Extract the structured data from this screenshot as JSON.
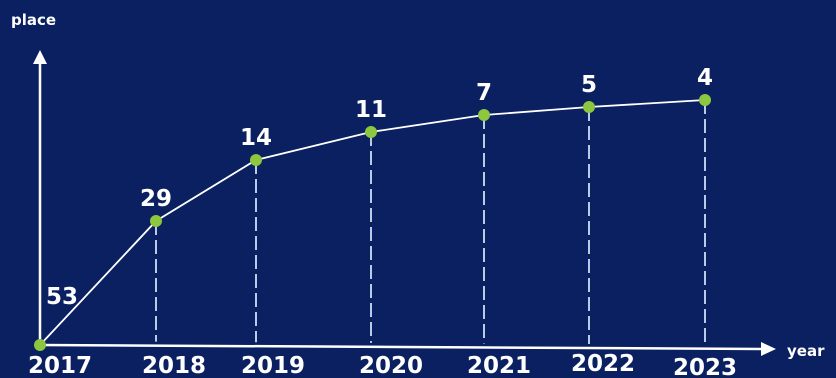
{
  "chart_data": {
    "type": "line",
    "xlabel": "year",
    "ylabel": "place",
    "categories": [
      "2017",
      "2018",
      "2019",
      "2020",
      "2021",
      "2022",
      "2023"
    ],
    "series": [
      {
        "values": [
          53,
          29,
          14,
          11,
          7,
          5,
          4
        ]
      }
    ],
    "grid": false,
    "y_axis_ticks_shown": false,
    "drop_lines": true,
    "colors": {
      "background": "#0a2060",
      "line": "#ffffff",
      "marker": "#8dc63f",
      "drop_line": "#b8cbe8",
      "text": "#ffffff"
    }
  }
}
